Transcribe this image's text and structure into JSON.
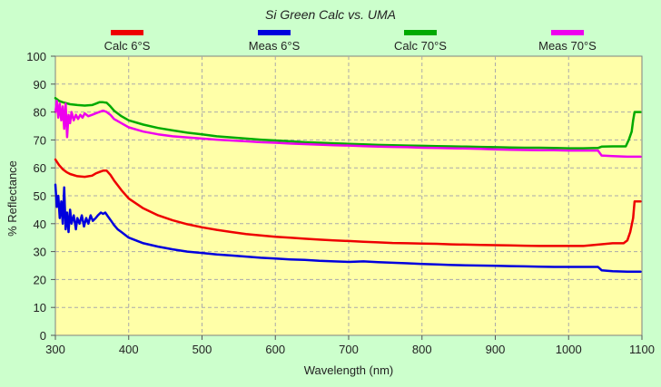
{
  "chart_data": {
    "type": "line",
    "title": "Si Green Calc vs. UMA",
    "xlabel": "Wavelength (nm)",
    "ylabel": "% Reflectance",
    "xlim": [
      300,
      1100
    ],
    "ylim": [
      0,
      100
    ],
    "x_ticks": [
      300,
      400,
      500,
      600,
      700,
      800,
      900,
      1000,
      1100
    ],
    "y_ticks": [
      0,
      10,
      20,
      30,
      40,
      50,
      60,
      70,
      80,
      90,
      100
    ],
    "grid": true,
    "legend_position": "top",
    "colors": {
      "plot_background": "#ffffa8",
      "page_background": "#ccffcc",
      "grid": "#aaaaaa"
    },
    "series": [
      {
        "name": "Calc 6°S",
        "color": "#ee0000",
        "points": [
          [
            300,
            63
          ],
          [
            305,
            61
          ],
          [
            310,
            59.5
          ],
          [
            315,
            58.5
          ],
          [
            320,
            57.8
          ],
          [
            330,
            57
          ],
          [
            340,
            56.8
          ],
          [
            350,
            57.2
          ],
          [
            355,
            58
          ],
          [
            360,
            58.5
          ],
          [
            365,
            59
          ],
          [
            370,
            59
          ],
          [
            375,
            57.5
          ],
          [
            380,
            55.5
          ],
          [
            390,
            52
          ],
          [
            400,
            49
          ],
          [
            420,
            45.5
          ],
          [
            440,
            43
          ],
          [
            460,
            41.2
          ],
          [
            480,
            39.8
          ],
          [
            500,
            38.7
          ],
          [
            520,
            37.8
          ],
          [
            540,
            37
          ],
          [
            560,
            36.3
          ],
          [
            580,
            35.8
          ],
          [
            600,
            35.3
          ],
          [
            620,
            35
          ],
          [
            640,
            34.6
          ],
          [
            660,
            34.3
          ],
          [
            680,
            34
          ],
          [
            700,
            33.8
          ],
          [
            720,
            33.5
          ],
          [
            740,
            33.3
          ],
          [
            760,
            33.1
          ],
          [
            780,
            33
          ],
          [
            800,
            32.9
          ],
          [
            820,
            32.8
          ],
          [
            840,
            32.6
          ],
          [
            860,
            32.5
          ],
          [
            880,
            32.4
          ],
          [
            900,
            32.3
          ],
          [
            920,
            32.2
          ],
          [
            940,
            32.1
          ],
          [
            960,
            32
          ],
          [
            980,
            32
          ],
          [
            1000,
            32
          ],
          [
            1020,
            32
          ],
          [
            1040,
            32.5
          ],
          [
            1060,
            33
          ],
          [
            1075,
            33
          ],
          [
            1080,
            34
          ],
          [
            1084,
            37
          ],
          [
            1088,
            42
          ],
          [
            1090,
            48
          ],
          [
            1098,
            48
          ]
        ]
      },
      {
        "name": "Meas 6°S",
        "color": "#0000dd",
        "points": [
          [
            300,
            54
          ],
          [
            302,
            46
          ],
          [
            304,
            50
          ],
          [
            306,
            42
          ],
          [
            308,
            48
          ],
          [
            310,
            40
          ],
          [
            312,
            53
          ],
          [
            314,
            38
          ],
          [
            316,
            44
          ],
          [
            318,
            37
          ],
          [
            320,
            45
          ],
          [
            322,
            40
          ],
          [
            325,
            43
          ],
          [
            328,
            38
          ],
          [
            330,
            42
          ],
          [
            333,
            40
          ],
          [
            336,
            43
          ],
          [
            339,
            39
          ],
          [
            342,
            42
          ],
          [
            345,
            40
          ],
          [
            348,
            43
          ],
          [
            351,
            41
          ],
          [
            355,
            42
          ],
          [
            358,
            43
          ],
          [
            362,
            44
          ],
          [
            365,
            43.5
          ],
          [
            368,
            44
          ],
          [
            372,
            42.5
          ],
          [
            376,
            41
          ],
          [
            380,
            39.5
          ],
          [
            385,
            38
          ],
          [
            390,
            37
          ],
          [
            400,
            35
          ],
          [
            420,
            33
          ],
          [
            440,
            31.8
          ],
          [
            460,
            30.8
          ],
          [
            480,
            30
          ],
          [
            500,
            29.5
          ],
          [
            520,
            29
          ],
          [
            540,
            28.6
          ],
          [
            560,
            28.2
          ],
          [
            580,
            27.8
          ],
          [
            600,
            27.5
          ],
          [
            620,
            27.2
          ],
          [
            640,
            27
          ],
          [
            660,
            26.7
          ],
          [
            680,
            26.5
          ],
          [
            700,
            26.3
          ],
          [
            720,
            26.5
          ],
          [
            740,
            26.2
          ],
          [
            760,
            26
          ],
          [
            780,
            25.8
          ],
          [
            800,
            25.6
          ],
          [
            820,
            25.4
          ],
          [
            840,
            25.2
          ],
          [
            860,
            25.1
          ],
          [
            880,
            25
          ],
          [
            900,
            24.9
          ],
          [
            920,
            24.8
          ],
          [
            940,
            24.7
          ],
          [
            960,
            24.6
          ],
          [
            980,
            24.5
          ],
          [
            1000,
            24.5
          ],
          [
            1020,
            24.5
          ],
          [
            1040,
            24.5
          ],
          [
            1045,
            23.3
          ],
          [
            1060,
            23
          ],
          [
            1080,
            22.8
          ],
          [
            1098,
            22.8
          ]
        ]
      },
      {
        "name": "Calc 70°S",
        "color": "#00aa00",
        "points": [
          [
            300,
            85
          ],
          [
            305,
            84
          ],
          [
            310,
            83.5
          ],
          [
            320,
            82.8
          ],
          [
            330,
            82.5
          ],
          [
            340,
            82.3
          ],
          [
            350,
            82.5
          ],
          [
            355,
            83
          ],
          [
            360,
            83.5
          ],
          [
            365,
            83.5
          ],
          [
            370,
            83.3
          ],
          [
            375,
            82
          ],
          [
            380,
            80.5
          ],
          [
            390,
            78.5
          ],
          [
            400,
            77
          ],
          [
            420,
            75.5
          ],
          [
            440,
            74.3
          ],
          [
            460,
            73.4
          ],
          [
            480,
            72.6
          ],
          [
            500,
            72
          ],
          [
            520,
            71.3
          ],
          [
            540,
            70.9
          ],
          [
            560,
            70.5
          ],
          [
            580,
            70.1
          ],
          [
            600,
            69.8
          ],
          [
            620,
            69.5
          ],
          [
            640,
            69.2
          ],
          [
            660,
            69
          ],
          [
            680,
            68.8
          ],
          [
            700,
            68.6
          ],
          [
            720,
            68.4
          ],
          [
            740,
            68.2
          ],
          [
            760,
            68.1
          ],
          [
            780,
            68
          ],
          [
            800,
            67.9
          ],
          [
            820,
            67.8
          ],
          [
            840,
            67.7
          ],
          [
            860,
            67.6
          ],
          [
            880,
            67.5
          ],
          [
            900,
            67.4
          ],
          [
            920,
            67.3
          ],
          [
            940,
            67.2
          ],
          [
            960,
            67.2
          ],
          [
            980,
            67.1
          ],
          [
            1000,
            67
          ],
          [
            1020,
            67
          ],
          [
            1040,
            67.1
          ],
          [
            1045,
            67.6
          ],
          [
            1060,
            67.7
          ],
          [
            1078,
            67.7
          ],
          [
            1082,
            70
          ],
          [
            1086,
            73
          ],
          [
            1088,
            77
          ],
          [
            1090,
            80
          ],
          [
            1098,
            80
          ]
        ]
      },
      {
        "name": "Meas 70°S",
        "color": "#ee00ee",
        "points": [
          [
            300,
            80
          ],
          [
            302,
            84
          ],
          [
            304,
            78
          ],
          [
            306,
            83
          ],
          [
            308,
            77
          ],
          [
            310,
            82
          ],
          [
            312,
            74
          ],
          [
            314,
            83
          ],
          [
            316,
            71
          ],
          [
            318,
            79
          ],
          [
            320,
            76
          ],
          [
            322,
            80
          ],
          [
            325,
            77
          ],
          [
            328,
            79
          ],
          [
            331,
            77.5
          ],
          [
            334,
            79
          ],
          [
            337,
            78
          ],
          [
            340,
            79.5
          ],
          [
            345,
            78.5
          ],
          [
            350,
            79
          ],
          [
            355,
            79.5
          ],
          [
            360,
            80
          ],
          [
            365,
            80.5
          ],
          [
            370,
            80
          ],
          [
            375,
            79
          ],
          [
            380,
            77.5
          ],
          [
            390,
            76
          ],
          [
            400,
            74.5
          ],
          [
            420,
            73
          ],
          [
            440,
            72
          ],
          [
            460,
            71.3
          ],
          [
            480,
            70.9
          ],
          [
            500,
            70.5
          ],
          [
            520,
            70.1
          ],
          [
            540,
            69.8
          ],
          [
            560,
            69.5
          ],
          [
            580,
            69.2
          ],
          [
            600,
            69
          ],
          [
            620,
            68.7
          ],
          [
            640,
            68.5
          ],
          [
            660,
            68.3
          ],
          [
            680,
            68.1
          ],
          [
            700,
            68
          ],
          [
            720,
            67.8
          ],
          [
            740,
            67.6
          ],
          [
            760,
            67.5
          ],
          [
            780,
            67.4
          ],
          [
            800,
            67.2
          ],
          [
            820,
            67.1
          ],
          [
            840,
            67
          ],
          [
            860,
            66.9
          ],
          [
            880,
            66.8
          ],
          [
            900,
            66.6
          ],
          [
            920,
            66.5
          ],
          [
            940,
            66.4
          ],
          [
            960,
            66.3
          ],
          [
            980,
            66.3
          ],
          [
            1000,
            66.2
          ],
          [
            1020,
            66.2
          ],
          [
            1040,
            66.2
          ],
          [
            1045,
            64.4
          ],
          [
            1060,
            64.2
          ],
          [
            1080,
            64
          ],
          [
            1098,
            64
          ]
        ]
      }
    ]
  }
}
